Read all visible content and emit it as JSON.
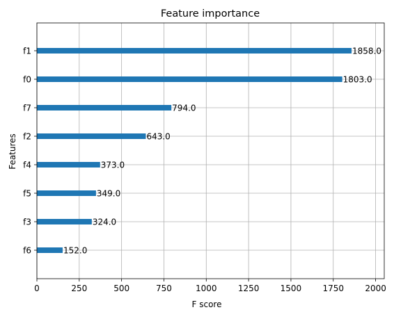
{
  "chart_data": {
    "type": "bar",
    "orientation": "horizontal",
    "title": "Feature importance",
    "xlabel": "F score",
    "ylabel": "Features",
    "categories": [
      "f1",
      "f0",
      "f7",
      "f2",
      "f4",
      "f5",
      "f3",
      "f6"
    ],
    "values": [
      1858.0,
      1803.0,
      794.0,
      643.0,
      373.0,
      349.0,
      324.0,
      152.0
    ],
    "value_labels": [
      "1858.0",
      "1803.0",
      "794.0",
      "643.0",
      "373.0",
      "349.0",
      "324.0",
      "152.0"
    ],
    "xlim": [
      0,
      2051
    ],
    "xticks": [
      0,
      250,
      500,
      750,
      1000,
      1250,
      1500,
      1750,
      2000
    ],
    "xtick_labels": [
      "0",
      "250",
      "500",
      "750",
      "1000",
      "1250",
      "1500",
      "1750",
      "2000"
    ],
    "grid": true,
    "bar_color": "#1f77b4",
    "grid_color": "#b0b0b0"
  }
}
